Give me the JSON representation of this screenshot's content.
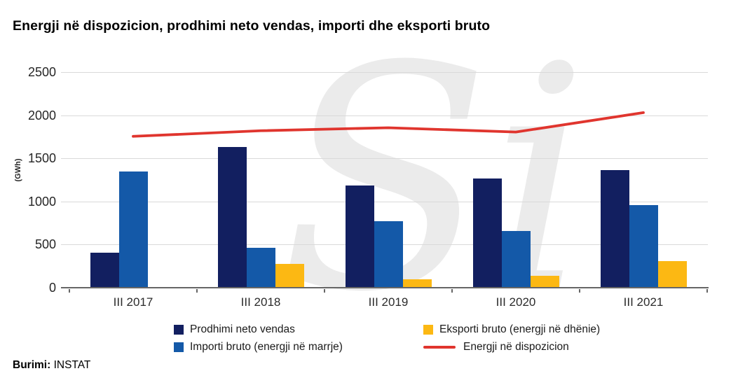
{
  "title": "Energji në dispozicion, prodhimi neto vendas, importi dhe eksporti bruto",
  "watermark": "Si",
  "source": {
    "label": "Burimi:",
    "value": "INSTAT"
  },
  "colors": {
    "navy": "#121f60",
    "blue": "#1459a8",
    "yellow": "#fcb813",
    "red": "#e0352e",
    "gridline": "#d9d9d9",
    "axis": "#666666",
    "watermark": "#ebebeb"
  },
  "chart_data": {
    "type": "bar",
    "categories": [
      "III 2017",
      "III 2018",
      "III 2019",
      "III 2020",
      "III 2021"
    ],
    "series": [
      {
        "name": "Prodhimi neto vendas",
        "type": "bar",
        "color": "#121f60",
        "values": [
          405,
          1630,
          1185,
          1265,
          1360
        ]
      },
      {
        "name": "Importi bruto (energji në marrje)",
        "type": "bar",
        "color": "#1459a8",
        "values": [
          1345,
          460,
          770,
          655,
          960
        ]
      },
      {
        "name": "Eksporti bruto (energji në dhënie)",
        "type": "bar",
        "color": "#fcb813",
        "values": [
          0,
          280,
          100,
          140,
          310
        ]
      },
      {
        "name": "Energji në dispozicion",
        "type": "line",
        "color": "#e0352e",
        "values": [
          1755,
          1820,
          1855,
          1805,
          2030
        ]
      }
    ],
    "title": "Energji në dispozicion, prodhimi neto vendas, importi dhe eksporti bruto",
    "xlabel": "",
    "ylabel": "(GWh)",
    "ylim": [
      0,
      2500
    ],
    "yticks": [
      0,
      500,
      1000,
      1500,
      2000,
      2500
    ],
    "grid": true,
    "legend_position": "bottom"
  }
}
